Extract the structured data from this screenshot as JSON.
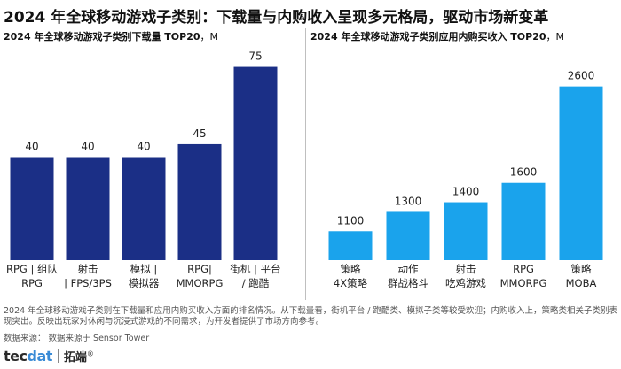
{
  "title": "2024 年全球移动游戏子类别：下载量与内购收入呈现多元格局，驱动市场新变革",
  "chart_data": [
    {
      "type": "bar",
      "title": "2024 年全球移动游戏子类别下载量 TOP20",
      "unit": "，M",
      "categories": [
        "RPG | 组队 RPG",
        "射击 | FPS/3PS",
        "模拟 | 模拟器",
        "RPG| MMORPG",
        "街机 | 平台 / 跑酷"
      ],
      "category_lines": [
        [
          "RPG | 组队",
          "RPG"
        ],
        [
          "射击",
          "| FPS/3PS"
        ],
        [
          "模拟 |",
          "模拟器"
        ],
        [
          "RPG|",
          "MMORPG"
        ],
        [
          "街机 | 平台",
          "/ 跑酷"
        ]
      ],
      "values": [
        40,
        40,
        40,
        45,
        75
      ],
      "ylim": [
        0,
        80
      ],
      "color": "#1b2f86"
    },
    {
      "type": "bar",
      "title": "2024 年全球移动游戏子类别应用内购买收入 TOP20",
      "unit": "，M",
      "categories": [
        "策略 4X策略",
        "动作 群战格斗",
        "射击 吃鸡游戏",
        "RPG MMORPG",
        "策略 MOBA"
      ],
      "category_lines": [
        [
          "策略",
          "4X策略"
        ],
        [
          "动作",
          "群战格斗"
        ],
        [
          "射击",
          "吃鸡游戏"
        ],
        [
          "RPG",
          "MMORPG"
        ],
        [
          "策略",
          "MOBA"
        ]
      ],
      "values": [
        1100,
        1300,
        1400,
        1600,
        2600
      ],
      "ylim": [
        800,
        2780
      ],
      "color": "#1aa3ec"
    }
  ],
  "note": "2024 年全球移动游戏子类别在下载量和应用内购买收入方面的排名情况。从下载量看，街机平台 / 跑酷类、模拟子类等较受欢迎；内购收入上，策略类相关子类别表现突出。反映出玩家对休闲与沉浸式游戏的不同需求，为开发者提供了市场方向参考。",
  "source": "数据来源：  数据来源于 Sensor Tower",
  "brand": {
    "logo_a": "tec",
    "logo_b": "dat",
    "name": "拓端",
    "mark": "®"
  }
}
